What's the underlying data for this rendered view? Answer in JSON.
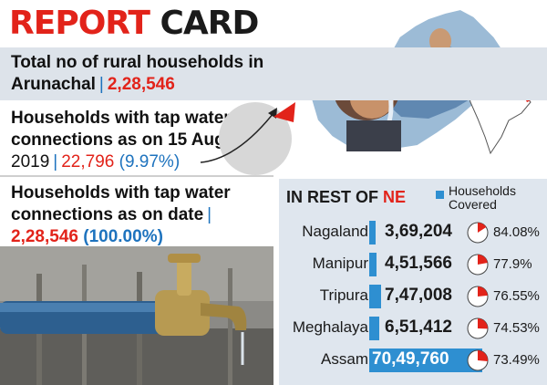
{
  "header": {
    "title_word1": "REPORT",
    "title_word2": "CARD"
  },
  "stats": {
    "rural_line1": "Total no of rural households in",
    "rural_line2": "Arunachal",
    "rural_value": "2,28,546",
    "tap2019_line1": "Households with tap water",
    "tap2019_line2": "connections as on 15 Aug",
    "tap2019_line3": "2019",
    "tap2019_value": "22,796",
    "tap2019_pct": "(9.97%)",
    "tapnow_line1": "Households with tap water",
    "tapnow_line2": "connections as on date",
    "tapnow_value": "2,28,546",
    "tapnow_pct": "(100.00%)"
  },
  "ne_panel": {
    "heading_prefix": "IN REST OF",
    "heading_ne": "NE",
    "legend_line1": "Households",
    "legend_line2": "Covered",
    "colors": {
      "bar": "#2e8fd1",
      "pie_slice": "#e2231a"
    }
  },
  "chart_data": {
    "type": "bar",
    "categories": [
      "Nagaland",
      "Manipur",
      "Tripura",
      "Meghalaya",
      "Assam"
    ],
    "series": [
      {
        "name": "Households Covered",
        "values": [
          369204,
          451566,
          747008,
          651412,
          7049760
        ],
        "labels": [
          "3,69,204",
          "4,51,566",
          "7,47,008",
          "6,51,412",
          "70,49,760"
        ]
      }
    ],
    "coverage_percent": [
      84.08,
      77.9,
      76.55,
      74.53,
      73.49
    ],
    "coverage_labels": [
      "84.08%",
      "77.9%",
      "76.55%",
      "74.53%",
      "73.49%"
    ]
  }
}
